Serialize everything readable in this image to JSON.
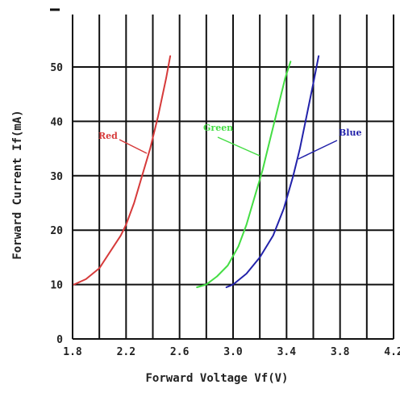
{
  "chart_data": {
    "type": "line",
    "xlabel": "Forward Voltage Vf(V)",
    "ylabel": "Forward Current  If(mA)",
    "xlim": [
      1.8,
      4.2
    ],
    "ylim": [
      0,
      55
    ],
    "x_ticks": [
      "1.8",
      "2.2",
      "2.6",
      "3.0",
      "3.4",
      "3.8",
      "4.2"
    ],
    "y_ticks": [
      "0",
      "10",
      "20",
      "30",
      "40",
      "50"
    ],
    "grid": true,
    "series": [
      {
        "name": "Red",
        "color": "#d63a3a",
        "points": [
          [
            1.81,
            10
          ],
          [
            1.9,
            11
          ],
          [
            2.0,
            13
          ],
          [
            2.08,
            16
          ],
          [
            2.16,
            19
          ],
          [
            2.2,
            21
          ],
          [
            2.26,
            25
          ],
          [
            2.32,
            30
          ],
          [
            2.38,
            35
          ],
          [
            2.44,
            41
          ],
          [
            2.5,
            48
          ],
          [
            2.53,
            52
          ]
        ]
      },
      {
        "name": "Green",
        "color": "#44dd44",
        "points": [
          [
            2.73,
            9.5
          ],
          [
            2.8,
            10
          ],
          [
            2.88,
            11.5
          ],
          [
            2.96,
            13.5
          ],
          [
            3.04,
            17
          ],
          [
            3.1,
            21
          ],
          [
            3.16,
            26
          ],
          [
            3.22,
            31
          ],
          [
            3.28,
            37
          ],
          [
            3.34,
            43
          ],
          [
            3.39,
            48
          ],
          [
            3.43,
            51
          ]
        ]
      },
      {
        "name": "Blue",
        "color": "#2222aa",
        "points": [
          [
            2.95,
            9.5
          ],
          [
            3.0,
            10
          ],
          [
            3.1,
            12
          ],
          [
            3.2,
            15
          ],
          [
            3.3,
            19
          ],
          [
            3.38,
            24
          ],
          [
            3.45,
            30
          ],
          [
            3.5,
            35
          ],
          [
            3.55,
            41
          ],
          [
            3.6,
            47
          ],
          [
            3.64,
            52
          ]
        ]
      }
    ],
    "annotations": [
      {
        "text": "Red",
        "color": "#d63a3a",
        "target_series": "Red"
      },
      {
        "text": "Green",
        "color": "#44dd44",
        "target_series": "Green"
      },
      {
        "text": "Blue",
        "color": "#2222aa",
        "target_series": "Blue"
      }
    ]
  }
}
